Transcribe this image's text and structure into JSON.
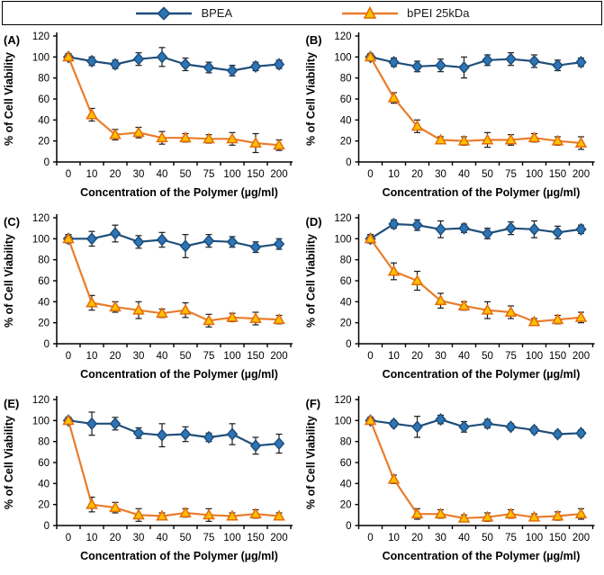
{
  "legend": {
    "items": [
      {
        "label": "BPEA",
        "marker": "diamond-icon"
      },
      {
        "label": "bPEI 25kDa",
        "marker": "triangle-icon"
      }
    ]
  },
  "colors": {
    "bpea_line": "#1F4E79",
    "bpea_fill": "#2E75B6",
    "bpei_line": "#E87D2B",
    "bpei_marker_stroke": "#E36C0A",
    "bpei_fill": "#FFC000",
    "error_bar": "#1A1A1A",
    "axis": "#000000"
  },
  "chart_data": {
    "type": "line",
    "categories": [
      "0",
      "10",
      "20",
      "30",
      "40",
      "50",
      "75",
      "100",
      "150",
      "200"
    ],
    "xlabel": "Concentration of the Polymer (µg/ml)",
    "ylabel": "% of Cell Viability",
    "ylim": [
      0,
      120
    ],
    "ytick_step": 20,
    "yticks": [
      0,
      20,
      40,
      60,
      80,
      100,
      120
    ],
    "grid": false,
    "legend_position": "top",
    "panels": [
      {
        "label": "(A)",
        "series": [
          {
            "name": "BPEA",
            "values": [
              100,
              96,
              93,
              98,
              100,
              93,
              90,
              87,
              91,
              93
            ],
            "errors": [
              3,
              4,
              4,
              6,
              9,
              6,
              5,
              5,
              4,
              4
            ]
          },
          {
            "name": "bPEI 25kDa",
            "values": [
              100,
              45,
              26,
              28,
              23,
              23,
              22,
              22,
              18,
              16
            ],
            "errors": [
              3,
              6,
              5,
              5,
              6,
              4,
              4,
              6,
              9,
              5
            ]
          }
        ]
      },
      {
        "label": "(B)",
        "series": [
          {
            "name": "BPEA",
            "values": [
              100,
              95,
              91,
              92,
              90,
              97,
              98,
              96,
              92,
              95
            ],
            "errors": [
              3,
              4,
              5,
              6,
              10,
              5,
              6,
              6,
              5,
              4
            ]
          },
          {
            "name": "bPEI 25kDa",
            "values": [
              100,
              61,
              34,
              21,
              20,
              21,
              21,
              23,
              20,
              18
            ],
            "errors": [
              3,
              5,
              6,
              3,
              4,
              7,
              5,
              4,
              4,
              6
            ]
          }
        ]
      },
      {
        "label": "(C)",
        "series": [
          {
            "name": "BPEA",
            "values": [
              100,
              100,
              105,
              97,
              99,
              93,
              98,
              97,
              92,
              95
            ],
            "errors": [
              4,
              7,
              8,
              6,
              7,
              11,
              6,
              5,
              5,
              5
            ]
          },
          {
            "name": "bPEI 25kDa",
            "values": [
              100,
              39,
              35,
              32,
              29,
              32,
              22,
              25,
              24,
              23
            ],
            "errors": [
              4,
              7,
              5,
              8,
              4,
              7,
              6,
              4,
              6,
              4
            ]
          }
        ]
      },
      {
        "label": "(D)",
        "series": [
          {
            "name": "BPEA",
            "values": [
              100,
              114,
              113,
              109,
              110,
              105,
              110,
              109,
              106,
              109
            ],
            "errors": [
              4,
              4,
              5,
              8,
              4,
              5,
              6,
              8,
              6,
              4
            ]
          },
          {
            "name": "bPEI 25kDa",
            "values": [
              100,
              69,
              60,
              41,
              36,
              32,
              30,
              21,
              23,
              25
            ],
            "errors": [
              4,
              8,
              9,
              7,
              4,
              8,
              6,
              3,
              4,
              5
            ]
          }
        ]
      },
      {
        "label": "(E)",
        "series": [
          {
            "name": "BPEA",
            "values": [
              100,
              97,
              97,
              88,
              86,
              87,
              84,
              87,
              76,
              78
            ],
            "errors": [
              3,
              11,
              6,
              5,
              11,
              7,
              4,
              10,
              8,
              9
            ]
          },
          {
            "name": "bPEI 25kDa",
            "values": [
              100,
              20,
              17,
              10,
              9,
              12,
              10,
              9,
              11,
              9
            ],
            "errors": [
              3,
              7,
              5,
              6,
              3,
              4,
              6,
              3,
              4,
              3
            ]
          }
        ]
      },
      {
        "label": "(F)",
        "series": [
          {
            "name": "BPEA",
            "values": [
              100,
              97,
              94,
              101,
              94,
              97,
              94,
              91,
              87,
              88
            ],
            "errors": [
              3,
              3,
              10,
              4,
              5,
              4,
              3,
              3,
              3,
              3
            ]
          },
          {
            "name": "bPEI 25kDa",
            "values": [
              100,
              44,
              11,
              11,
              7,
              8,
              11,
              8,
              9,
              11
            ],
            "errors": [
              3,
              4,
              5,
              4,
              3,
              4,
              4,
              3,
              4,
              5
            ]
          }
        ]
      }
    ]
  }
}
